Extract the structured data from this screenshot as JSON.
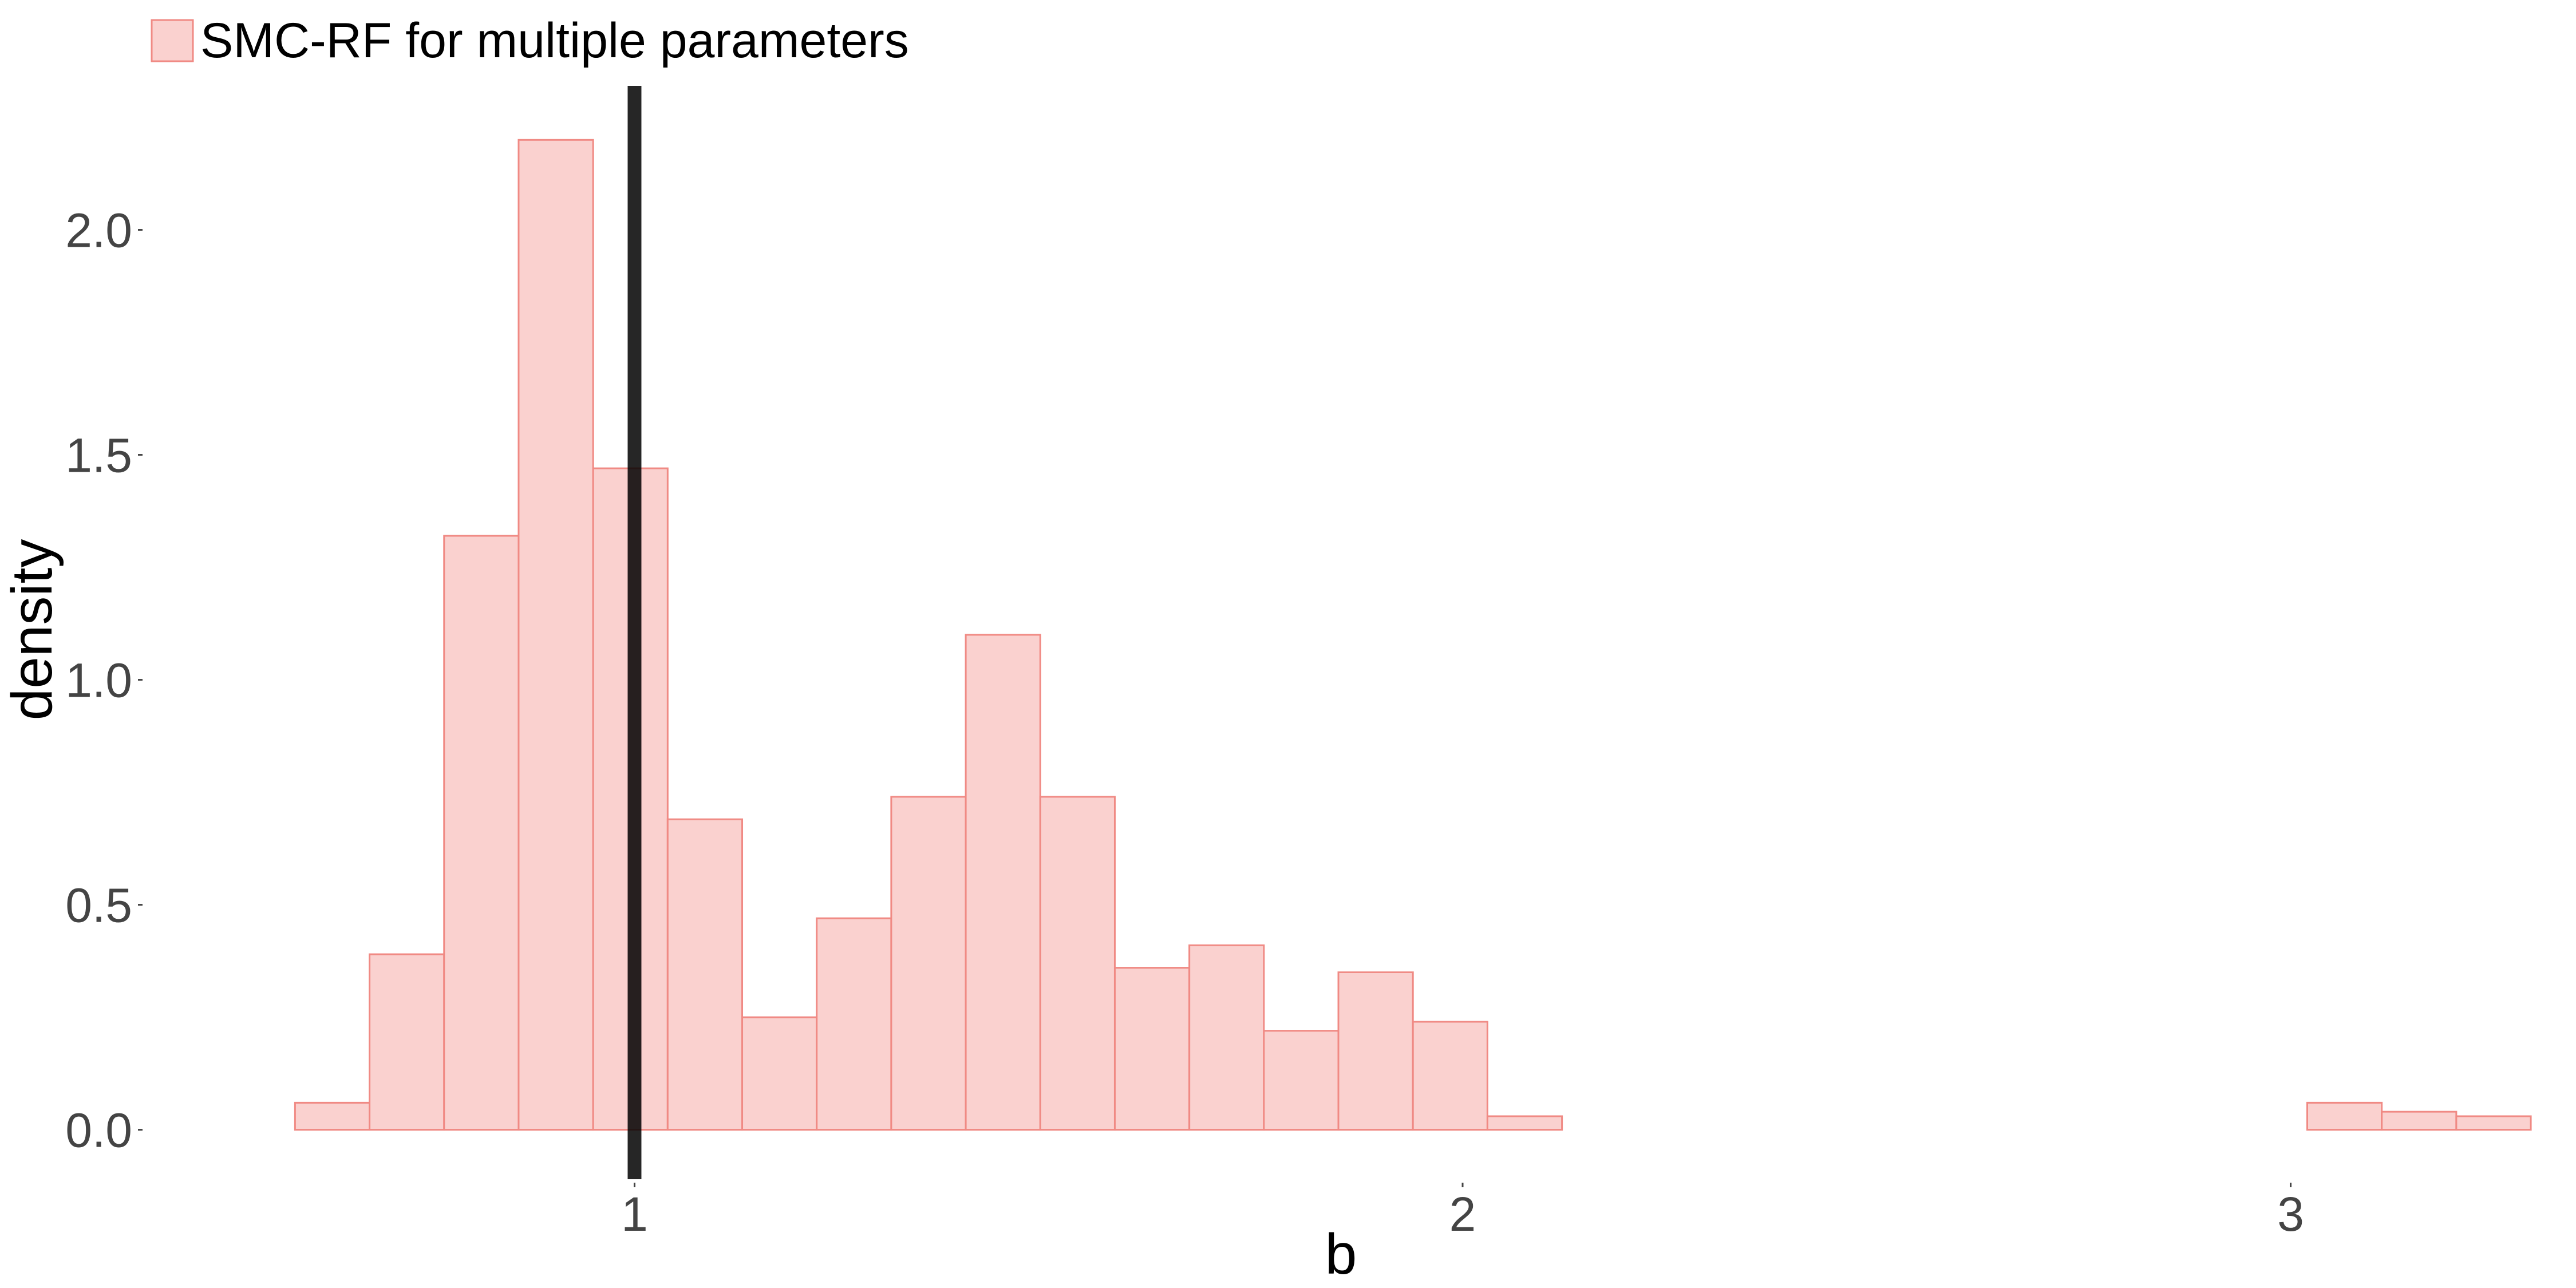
{
  "chart_data": {
    "type": "bar",
    "xlabel": "b",
    "ylabel": "density",
    "xlim": [
      0.41,
      3.31
    ],
    "ylim": [
      -0.11,
      2.32
    ],
    "x_ticks": [
      1,
      2,
      3
    ],
    "x_tick_labels": [
      "1",
      "2",
      "3"
    ],
    "y_ticks": [
      0.0,
      0.5,
      1.0,
      1.5,
      2.0
    ],
    "y_tick_labels": [
      "0.0",
      "0.5",
      "1.0",
      "1.5",
      "2.0"
    ],
    "grid": false,
    "legend": {
      "position": "top-left",
      "entries": [
        "SMC-RF for multiple parameters"
      ]
    },
    "true_value_line": {
      "x": 1.0,
      "color": "#000000"
    },
    "series": [
      {
        "name": "SMC-RF for multiple parameters",
        "fill": "#fad1cf",
        "stroke": "#f08a84",
        "bins": [
          {
            "x0": 0.59,
            "x1": 0.68,
            "density": 0.06
          },
          {
            "x0": 0.68,
            "x1": 0.77,
            "density": 0.39
          },
          {
            "x0": 0.77,
            "x1": 0.86,
            "density": 1.32
          },
          {
            "x0": 0.86,
            "x1": 0.95,
            "density": 2.2
          },
          {
            "x0": 0.95,
            "x1": 1.04,
            "density": 1.47
          },
          {
            "x0": 1.04,
            "x1": 1.13,
            "density": 0.69
          },
          {
            "x0": 1.13,
            "x1": 1.22,
            "density": 0.25
          },
          {
            "x0": 1.22,
            "x1": 1.31,
            "density": 0.47
          },
          {
            "x0": 1.31,
            "x1": 1.4,
            "density": 0.74
          },
          {
            "x0": 1.4,
            "x1": 1.49,
            "density": 1.1
          },
          {
            "x0": 1.49,
            "x1": 1.58,
            "density": 0.74
          },
          {
            "x0": 1.58,
            "x1": 1.67,
            "density": 0.36
          },
          {
            "x0": 1.67,
            "x1": 1.76,
            "density": 0.41
          },
          {
            "x0": 1.76,
            "x1": 1.85,
            "density": 0.22
          },
          {
            "x0": 1.85,
            "x1": 1.94,
            "density": 0.35
          },
          {
            "x0": 1.94,
            "x1": 2.03,
            "density": 0.24
          },
          {
            "x0": 2.03,
            "x1": 2.12,
            "density": 0.03
          },
          {
            "x0": 2.12,
            "x1": 2.21,
            "density": 0.0
          },
          {
            "x0": 2.21,
            "x1": 2.3,
            "density": 0.0
          },
          {
            "x0": 2.3,
            "x1": 2.39,
            "density": 0.0
          },
          {
            "x0": 2.39,
            "x1": 2.48,
            "density": 0.0
          },
          {
            "x0": 2.48,
            "x1": 2.57,
            "density": 0.0
          },
          {
            "x0": 2.57,
            "x1": 2.66,
            "density": 0.0
          },
          {
            "x0": 2.66,
            "x1": 2.75,
            "density": 0.0
          },
          {
            "x0": 2.75,
            "x1": 2.84,
            "density": 0.0
          },
          {
            "x0": 2.84,
            "x1": 2.93,
            "density": 0.0
          },
          {
            "x0": 2.93,
            "x1": 3.02,
            "density": 0.0
          },
          {
            "x0": 3.02,
            "x1": 3.11,
            "density": 0.06
          },
          {
            "x0": 3.11,
            "x1": 3.2,
            "density": 0.04
          },
          {
            "x0": 3.2,
            "x1": 3.29,
            "density": 0.03
          }
        ]
      }
    ]
  }
}
